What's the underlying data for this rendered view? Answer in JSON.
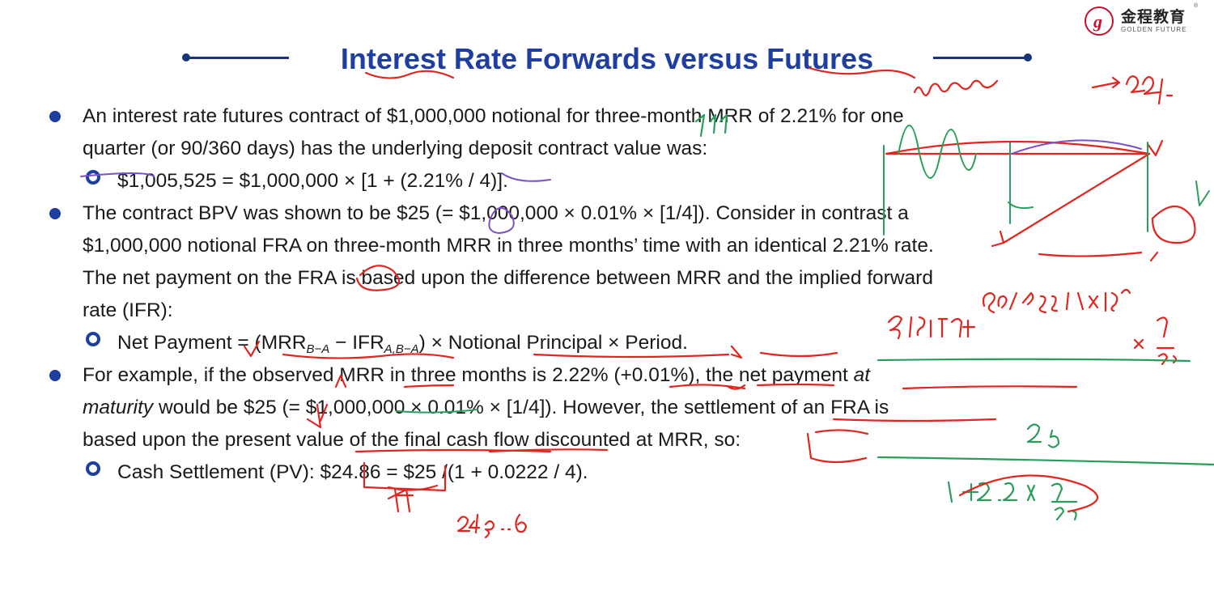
{
  "brand": {
    "cn": "金程教育",
    "en": "GOLDEN FUTURE",
    "reg": "®",
    "color": "#c8102e"
  },
  "title": "Interest Rate Forwards versus Futures",
  "accent_color": "#1f3fa0",
  "bullets": {
    "b1_line1": "An interest rate futures contract of $1,000,000 notional for three-month MRR of 2.21% for one",
    "b1_line2": "quarter (or 90/360 days) has the underlying deposit contract value was:",
    "b1_sub": "$1,005,525 = $1,000,000 × [1 + (2.21% / 4)].",
    "b2_line1": "The contract BPV was shown to be $25 (= $1,000,000 × 0.01% × [1/4]). Consider in contrast a",
    "b2_line2": "$1,000,000 notional FRA on three-month MRR in three months’ time with an identical 2.21% rate.",
    "b2_line3": "The net payment on the FRA is based upon the difference between MRR and the implied forward",
    "b2_line4": "rate (IFR):",
    "b2_sub_a": "Net Payment = (MRR",
    "b2_sub_s1": "B−A",
    "b2_sub_b": " − IFR",
    "b2_sub_s2": "A,B−A",
    "b2_sub_c": ") × Notional Principal × Period.",
    "b3_line1": "For example, if the observed MRR in three months is 2.22% (+0.01%), the net payment ",
    "b3_line1_em": "at",
    "b3_line2_em": "maturity",
    "b3_line2": " would be $25 (= $1,000,000 × 0.01% × [1/4]). However, the settlement of an FRA is",
    "b3_line3": "based upon the present value of the final cash flow discounted at MRR, so:",
    "b3_sub": "Cash Settlement (PV): $24.86 = $25 /(1 + 0.0222 / 4)."
  }
}
